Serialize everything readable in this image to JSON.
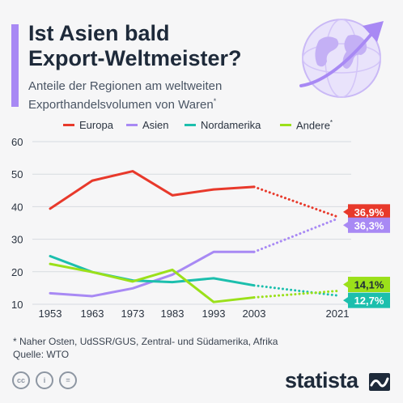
{
  "header": {
    "title_line1": "Ist Asien bald",
    "title_line2": "Export-Weltmeister?",
    "subtitle_line1": "Anteile der Regionen am weltweiten",
    "subtitle_line2": "Exporthandelsvolumen von Waren",
    "subtitle_mark": "*"
  },
  "icons": {
    "globe": "globe-arrow-icon",
    "cc": [
      "cc-icon",
      "person-icon",
      "equals-icon"
    ],
    "brand": "statista-wave-icon"
  },
  "colors": {
    "accent": "#a889f4",
    "europa": "#e8392b",
    "asien": "#a889f4",
    "nordamerika": "#1cbfad",
    "andere": "#9be01a"
  },
  "chart_data": {
    "type": "line",
    "title": "",
    "xlabel": "",
    "ylabel": "",
    "categories": [
      "1953",
      "1963",
      "1973",
      "1983",
      "1993",
      "2003",
      "2021"
    ],
    "ylim": [
      10,
      60
    ],
    "yticks": [
      10,
      20,
      30,
      40,
      50,
      60
    ],
    "grid": true,
    "legend_position": "top",
    "projection_segment": "2003-2021 dotted",
    "series": [
      {
        "name": "Europa",
        "values": [
          39.4,
          48.0,
          50.9,
          43.5,
          45.3,
          46.1,
          36.9
        ],
        "end_label": "36,9%",
        "color": "#e8392b"
      },
      {
        "name": "Asien",
        "values": [
          13.4,
          12.5,
          14.9,
          19.1,
          26.1,
          26.1,
          36.3
        ],
        "end_label": "36,3%",
        "color": "#a889f4"
      },
      {
        "name": "Nordamerika",
        "values": [
          24.8,
          19.9,
          17.3,
          16.8,
          18.0,
          15.8,
          12.7
        ],
        "end_label": "12,7%",
        "color": "#1cbfad"
      },
      {
        "name": "Andere",
        "name_mark": "*",
        "values": [
          22.4,
          19.9,
          17.0,
          20.6,
          10.7,
          12.1,
          14.1
        ],
        "end_label": "14,1%",
        "color": "#9be01a"
      }
    ]
  },
  "footnote": {
    "line1": "* Naher Osten, UdSSR/GUS, Zentral- und Südamerika, Afrika",
    "line2": "Quelle: WTO"
  },
  "brand": {
    "name": "statista"
  }
}
